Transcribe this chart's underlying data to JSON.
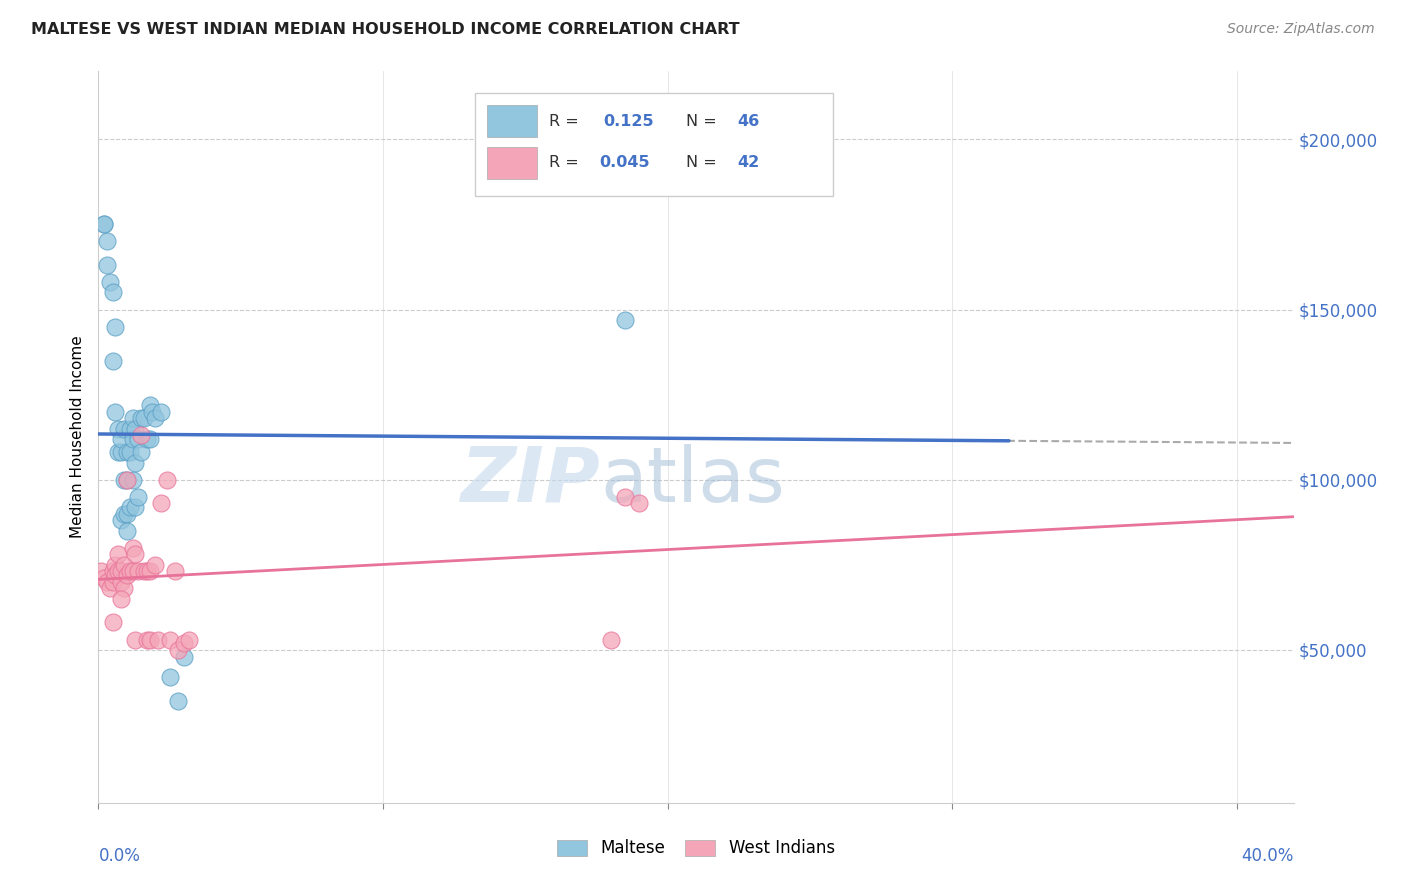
{
  "title": "MALTESE VS WEST INDIAN MEDIAN HOUSEHOLD INCOME CORRELATION CHART",
  "source": "Source: ZipAtlas.com",
  "ylabel": "Median Household Income",
  "y_tick_labels": [
    "$50,000",
    "$100,000",
    "$150,000",
    "$200,000"
  ],
  "y_tick_values": [
    50000,
    100000,
    150000,
    200000
  ],
  "ylim": [
    5000,
    220000
  ],
  "xlim": [
    0.0,
    0.42
  ],
  "watermark_zip": "ZIP",
  "watermark_atlas": "atlas",
  "blue_color": "#92c5de",
  "blue_edge_color": "#5a9fc5",
  "pink_color": "#f4a6b8",
  "pink_edge_color": "#e87399",
  "blue_line_color": "#4472c6",
  "pink_line_color": "#e8739a",
  "dashed_line_color": "#aaaaaa",
  "maltese_x": [
    0.002,
    0.003,
    0.004,
    0.005,
    0.005,
    0.006,
    0.006,
    0.007,
    0.007,
    0.008,
    0.008,
    0.008,
    0.009,
    0.009,
    0.009,
    0.01,
    0.01,
    0.01,
    0.01,
    0.011,
    0.011,
    0.011,
    0.012,
    0.012,
    0.012,
    0.013,
    0.013,
    0.013,
    0.014,
    0.014,
    0.015,
    0.015,
    0.016,
    0.017,
    0.018,
    0.018,
    0.019,
    0.02,
    0.022,
    0.025,
    0.028,
    0.03,
    0.185,
    0.002,
    0.003
  ],
  "maltese_y": [
    175000,
    170000,
    158000,
    135000,
    155000,
    120000,
    145000,
    108000,
    115000,
    108000,
    112000,
    88000,
    100000,
    115000,
    90000,
    108000,
    100000,
    90000,
    85000,
    115000,
    108000,
    92000,
    112000,
    100000,
    118000,
    105000,
    92000,
    115000,
    112000,
    95000,
    118000,
    108000,
    118000,
    112000,
    122000,
    112000,
    120000,
    118000,
    120000,
    42000,
    35000,
    48000,
    147000,
    175000,
    163000
  ],
  "westindian_x": [
    0.001,
    0.002,
    0.003,
    0.004,
    0.005,
    0.005,
    0.006,
    0.006,
    0.007,
    0.007,
    0.008,
    0.008,
    0.009,
    0.009,
    0.01,
    0.01,
    0.011,
    0.012,
    0.012,
    0.013,
    0.013,
    0.014,
    0.015,
    0.016,
    0.017,
    0.017,
    0.018,
    0.018,
    0.02,
    0.021,
    0.022,
    0.024,
    0.025,
    0.027,
    0.028,
    0.03,
    0.032,
    0.185,
    0.19,
    0.005,
    0.008,
    0.18
  ],
  "westindian_y": [
    73000,
    71000,
    70000,
    68000,
    73000,
    70000,
    75000,
    72000,
    78000,
    73000,
    70000,
    73000,
    75000,
    68000,
    72000,
    100000,
    73000,
    80000,
    73000,
    78000,
    53000,
    73000,
    113000,
    73000,
    53000,
    73000,
    53000,
    73000,
    75000,
    53000,
    93000,
    100000,
    53000,
    73000,
    50000,
    52000,
    53000,
    95000,
    93000,
    58000,
    65000,
    53000
  ]
}
